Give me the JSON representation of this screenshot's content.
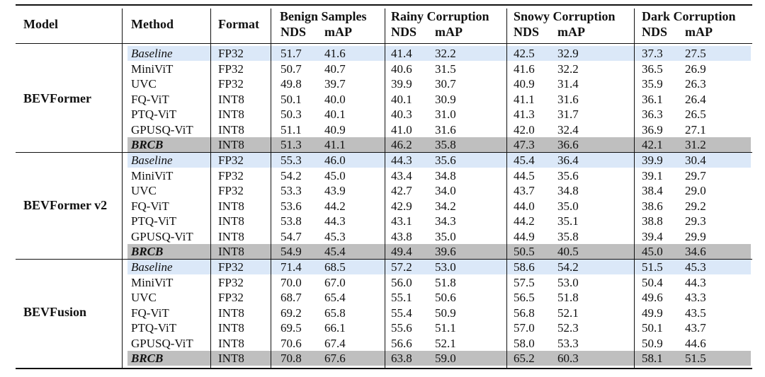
{
  "header": {
    "model": "Model",
    "method": "Method",
    "format": "Format",
    "groups": [
      "Benign Samples",
      "Rainy Corruption",
      "Snowy Corruption",
      "Dark Corruption"
    ],
    "metrics": [
      "NDS",
      "mAP"
    ]
  },
  "blocks": [
    {
      "model": "BEVFormer",
      "rows": [
        {
          "method": "Baseline",
          "format": "FP32",
          "values": [
            "51.7",
            "41.6",
            "41.4",
            "32.2",
            "42.5",
            "32.9",
            "37.3",
            "27.5"
          ]
        },
        {
          "method": "MiniViT",
          "format": "FP32",
          "values": [
            "50.7",
            "40.7",
            "40.6",
            "31.5",
            "41.6",
            "32.2",
            "36.5",
            "26.9"
          ]
        },
        {
          "method": "UVC",
          "format": "FP32",
          "values": [
            "49.8",
            "39.7",
            "39.9",
            "30.7",
            "40.9",
            "31.4",
            "35.9",
            "26.3"
          ]
        },
        {
          "method": "FQ-ViT",
          "format": "INT8",
          "values": [
            "50.1",
            "40.0",
            "40.1",
            "30.9",
            "41.1",
            "31.6",
            "36.1",
            "26.4"
          ]
        },
        {
          "method": "PTQ-ViT",
          "format": "INT8",
          "values": [
            "50.3",
            "40.1",
            "40.3",
            "31.0",
            "41.3",
            "31.7",
            "36.3",
            "26.5"
          ]
        },
        {
          "method": "GPUSQ-ViT",
          "format": "INT8",
          "values": [
            "51.1",
            "40.9",
            "41.0",
            "31.6",
            "42.0",
            "32.4",
            "36.9",
            "27.1"
          ]
        },
        {
          "method": "BRCB",
          "format": "INT8",
          "values": [
            "51.3",
            "41.1",
            "46.2",
            "35.8",
            "47.3",
            "36.6",
            "42.1",
            "31.2"
          ]
        }
      ]
    },
    {
      "model": "BEVFormer v2",
      "rows": [
        {
          "method": "Baseline",
          "format": "FP32",
          "values": [
            "55.3",
            "46.0",
            "44.3",
            "35.6",
            "45.4",
            "36.4",
            "39.9",
            "30.4"
          ]
        },
        {
          "method": "MiniViT",
          "format": "FP32",
          "values": [
            "54.2",
            "45.0",
            "43.4",
            "34.8",
            "44.5",
            "35.6",
            "39.1",
            "29.7"
          ]
        },
        {
          "method": "UVC",
          "format": "FP32",
          "values": [
            "53.3",
            "43.9",
            "42.7",
            "34.0",
            "43.7",
            "34.8",
            "38.4",
            "29.0"
          ]
        },
        {
          "method": "FQ-ViT",
          "format": "INT8",
          "values": [
            "53.6",
            "44.2",
            "42.9",
            "34.2",
            "44.0",
            "35.0",
            "38.6",
            "29.2"
          ]
        },
        {
          "method": "PTQ-ViT",
          "format": "INT8",
          "values": [
            "53.8",
            "44.3",
            "43.1",
            "34.3",
            "44.2",
            "35.1",
            "38.8",
            "29.3"
          ]
        },
        {
          "method": "GPUSQ-ViT",
          "format": "INT8",
          "values": [
            "54.7",
            "45.3",
            "43.8",
            "35.0",
            "44.9",
            "35.8",
            "39.4",
            "29.9"
          ]
        },
        {
          "method": "BRCB",
          "format": "INT8",
          "values": [
            "54.9",
            "45.4",
            "49.4",
            "39.6",
            "50.5",
            "40.5",
            "45.0",
            "34.6"
          ]
        }
      ]
    },
    {
      "model": "BEVFusion",
      "rows": [
        {
          "method": "Baseline",
          "format": "FP32",
          "values": [
            "71.4",
            "68.5",
            "57.2",
            "53.0",
            "58.6",
            "54.2",
            "51.5",
            "45.3"
          ]
        },
        {
          "method": "MiniViT",
          "format": "FP32",
          "values": [
            "70.0",
            "67.0",
            "56.0",
            "51.8",
            "57.5",
            "53.0",
            "50.4",
            "44.3"
          ]
        },
        {
          "method": "UVC",
          "format": "FP32",
          "values": [
            "68.7",
            "65.4",
            "55.1",
            "50.6",
            "56.5",
            "51.8",
            "49.6",
            "43.3"
          ]
        },
        {
          "method": "FQ-ViT",
          "format": "INT8",
          "values": [
            "69.2",
            "65.8",
            "55.4",
            "50.9",
            "56.8",
            "52.1",
            "49.9",
            "43.5"
          ]
        },
        {
          "method": "PTQ-ViT",
          "format": "INT8",
          "values": [
            "69.5",
            "66.1",
            "55.6",
            "51.1",
            "57.0",
            "52.3",
            "50.1",
            "43.7"
          ]
        },
        {
          "method": "GPUSQ-ViT",
          "format": "INT8",
          "values": [
            "70.6",
            "67.4",
            "56.6",
            "52.1",
            "58.0",
            "53.3",
            "50.9",
            "44.6"
          ]
        },
        {
          "method": "BRCB",
          "format": "INT8",
          "values": [
            "70.8",
            "67.6",
            "63.8",
            "59.0",
            "65.2",
            "60.3",
            "58.1",
            "51.5"
          ]
        }
      ]
    }
  ]
}
